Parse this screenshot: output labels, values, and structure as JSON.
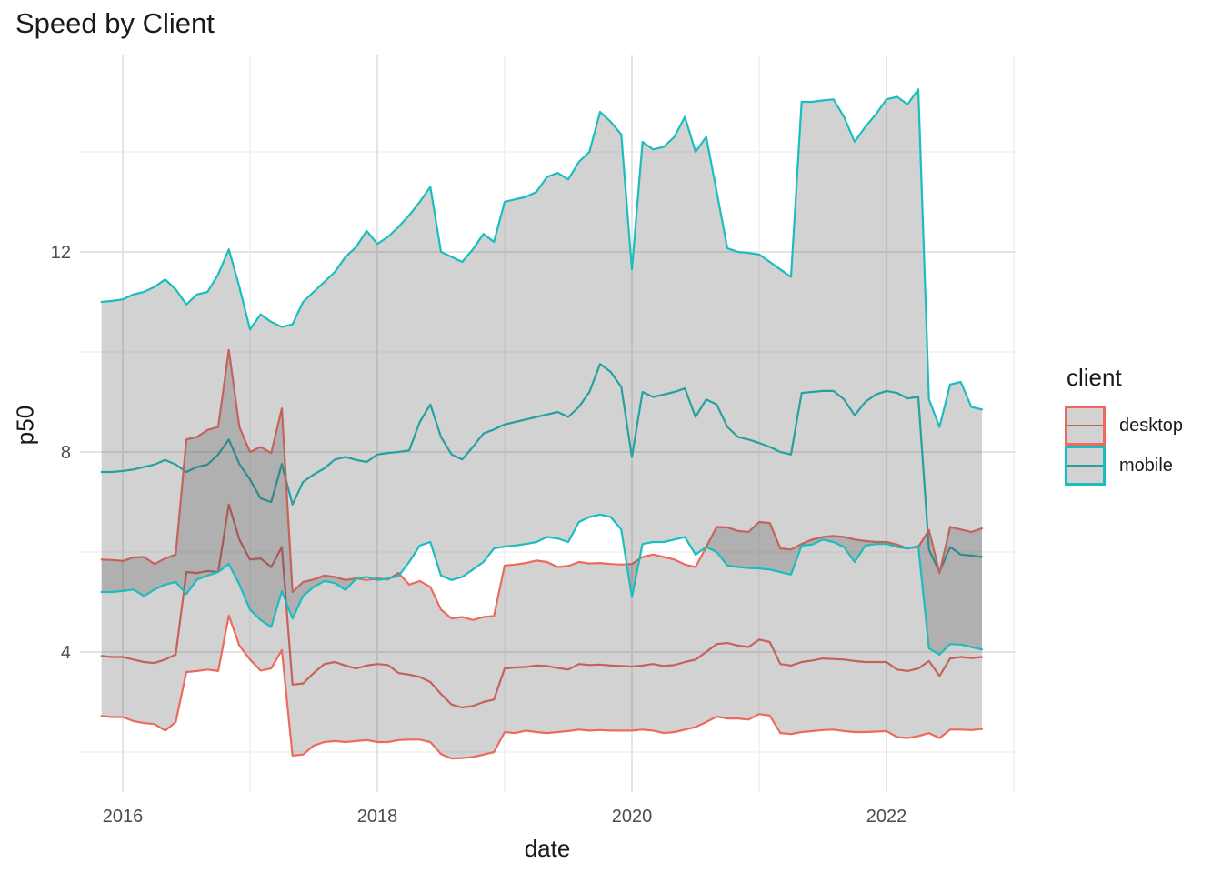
{
  "title": "Speed by Client",
  "axes": {
    "x_label": "date",
    "y_label": "p50",
    "x_tick_labels": [
      "2016",
      "2018",
      "2020",
      "2022"
    ],
    "y_tick_labels": [
      "4",
      "8",
      "12"
    ]
  },
  "legend": {
    "title": "client",
    "items": [
      {
        "label": "desktop",
        "color": "#EE6A5F"
      },
      {
        "label": "mobile",
        "color": "#1BBDBE"
      }
    ]
  },
  "colors": {
    "desktop": "#EE6A5F",
    "mobile": "#1BBDBE",
    "ribbon_fill": "rgba(77,77,77,0.25)",
    "grid_major": "#E4E4E4",
    "grid_minor": "#EDEDED",
    "tick_text": "#4D4D4D",
    "text": "#1A1A1A",
    "background": "#FFFFFF"
  },
  "chart_data": {
    "type": "area",
    "title": "Speed by Client",
    "xlabel": "date",
    "ylabel": "p50",
    "legend_title": "client",
    "legend_position": "right",
    "grid": true,
    "x_start_year": 2015.8333,
    "x_step_years": 0.08333,
    "n_points": 84,
    "xlim": [
      2015.66,
      2023.01
    ],
    "ylim": [
      1.2,
      15.93
    ],
    "x_ticks_major": [
      2016,
      2018,
      2020,
      2022
    ],
    "x_ticks_minor": [
      2017,
      2019,
      2021,
      2023
    ],
    "y_ticks_major": [
      4,
      8,
      12
    ],
    "y_ticks_minor": [
      2,
      6,
      10,
      14
    ],
    "series": [
      {
        "name": "desktop",
        "color": "#EE6A5F",
        "upper": [
          5.85,
          5.84,
          5.82,
          5.89,
          5.9,
          5.76,
          5.87,
          5.95,
          8.25,
          8.3,
          8.44,
          8.5,
          10.04,
          8.5,
          8.0,
          8.1,
          7.98,
          8.87,
          5.2,
          5.4,
          5.45,
          5.53,
          5.5,
          5.44,
          5.47,
          5.44,
          5.47,
          5.45,
          5.58,
          5.35,
          5.42,
          5.3,
          4.85,
          4.67,
          4.7,
          4.64,
          4.7,
          4.72,
          5.73,
          5.75,
          5.78,
          5.83,
          5.8,
          5.7,
          5.72,
          5.8,
          5.77,
          5.78,
          5.76,
          5.75,
          5.76,
          5.9,
          5.95,
          5.9,
          5.85,
          5.75,
          5.7,
          6.1,
          6.5,
          6.49,
          6.42,
          6.4,
          6.6,
          6.58,
          6.07,
          6.05,
          6.16,
          6.25,
          6.3,
          6.32,
          6.3,
          6.25,
          6.22,
          6.2,
          6.2,
          6.15,
          6.07,
          6.1,
          6.44,
          5.58,
          6.5,
          6.45,
          6.4,
          6.47
        ],
        "mid": [
          3.92,
          3.9,
          3.9,
          3.85,
          3.8,
          3.78,
          3.85,
          3.95,
          5.6,
          5.58,
          5.62,
          5.6,
          6.95,
          6.25,
          5.85,
          5.87,
          5.7,
          6.1,
          3.35,
          3.37,
          3.58,
          3.76,
          3.8,
          3.73,
          3.67,
          3.73,
          3.76,
          3.74,
          3.58,
          3.55,
          3.5,
          3.4,
          3.16,
          2.95,
          2.89,
          2.92,
          3.0,
          3.05,
          3.67,
          3.69,
          3.7,
          3.73,
          3.72,
          3.68,
          3.65,
          3.76,
          3.74,
          3.75,
          3.73,
          3.72,
          3.71,
          3.73,
          3.76,
          3.72,
          3.74,
          3.8,
          3.85,
          4.0,
          4.16,
          4.18,
          4.13,
          4.1,
          4.25,
          4.2,
          3.76,
          3.73,
          3.8,
          3.83,
          3.87,
          3.86,
          3.85,
          3.82,
          3.8,
          3.8,
          3.8,
          3.65,
          3.62,
          3.67,
          3.82,
          3.52,
          3.87,
          3.9,
          3.88,
          3.9
        ],
        "lower": [
          2.72,
          2.7,
          2.7,
          2.62,
          2.58,
          2.56,
          2.43,
          2.6,
          3.6,
          3.62,
          3.65,
          3.62,
          4.73,
          4.13,
          3.85,
          3.63,
          3.67,
          4.04,
          1.93,
          1.95,
          2.13,
          2.2,
          2.22,
          2.2,
          2.22,
          2.24,
          2.2,
          2.2,
          2.24,
          2.25,
          2.25,
          2.2,
          1.96,
          1.87,
          1.88,
          1.9,
          1.95,
          2.0,
          2.4,
          2.38,
          2.43,
          2.4,
          2.38,
          2.4,
          2.42,
          2.45,
          2.43,
          2.44,
          2.43,
          2.43,
          2.43,
          2.45,
          2.43,
          2.38,
          2.4,
          2.45,
          2.5,
          2.6,
          2.71,
          2.67,
          2.67,
          2.65,
          2.76,
          2.73,
          2.38,
          2.36,
          2.4,
          2.42,
          2.44,
          2.45,
          2.42,
          2.4,
          2.4,
          2.41,
          2.42,
          2.3,
          2.28,
          2.32,
          2.38,
          2.28,
          2.45,
          2.45,
          2.44,
          2.46
        ]
      },
      {
        "name": "mobile",
        "color": "#1BBDBE",
        "upper": [
          11.0,
          11.02,
          11.05,
          11.15,
          11.2,
          11.3,
          11.45,
          11.25,
          10.95,
          11.15,
          11.2,
          11.55,
          12.05,
          11.3,
          10.45,
          10.75,
          10.6,
          10.5,
          10.55,
          11.0,
          11.2,
          11.4,
          11.6,
          11.9,
          12.1,
          12.42,
          12.16,
          12.3,
          12.5,
          12.73,
          13.0,
          13.3,
          12.0,
          11.9,
          11.8,
          12.05,
          12.36,
          12.2,
          13.0,
          13.05,
          13.1,
          13.2,
          13.5,
          13.58,
          13.45,
          13.8,
          14.0,
          14.8,
          14.6,
          14.35,
          11.65,
          14.2,
          14.05,
          14.1,
          14.3,
          14.7,
          14.0,
          14.3,
          13.2,
          12.07,
          12.0,
          11.98,
          11.95,
          11.8,
          11.65,
          11.5,
          15.0,
          15.0,
          15.03,
          15.05,
          14.7,
          14.2,
          14.5,
          14.75,
          15.05,
          15.1,
          14.95,
          15.25,
          9.05,
          8.5,
          9.35,
          9.4,
          8.9,
          8.85
        ],
        "mid": [
          7.6,
          7.6,
          7.62,
          7.65,
          7.7,
          7.75,
          7.84,
          7.75,
          7.6,
          7.7,
          7.75,
          7.95,
          8.25,
          7.76,
          7.45,
          7.07,
          7.0,
          7.76,
          6.95,
          7.4,
          7.55,
          7.67,
          7.85,
          7.9,
          7.84,
          7.8,
          7.95,
          7.98,
          8.0,
          8.03,
          8.6,
          8.95,
          8.3,
          7.95,
          7.85,
          8.1,
          8.37,
          8.45,
          8.55,
          8.6,
          8.65,
          8.7,
          8.75,
          8.8,
          8.7,
          8.9,
          9.2,
          9.76,
          9.6,
          9.3,
          7.9,
          9.2,
          9.1,
          9.15,
          9.2,
          9.27,
          8.7,
          9.05,
          8.95,
          8.5,
          8.3,
          8.25,
          8.18,
          8.1,
          8.0,
          7.95,
          9.18,
          9.2,
          9.22,
          9.22,
          9.05,
          8.73,
          9.0,
          9.15,
          9.22,
          9.18,
          9.07,
          9.1,
          6.05,
          5.6,
          6.1,
          5.95,
          5.93,
          5.9
        ],
        "lower": [
          5.2,
          5.2,
          5.22,
          5.25,
          5.12,
          5.25,
          5.35,
          5.4,
          5.16,
          5.45,
          5.53,
          5.6,
          5.76,
          5.35,
          4.85,
          4.64,
          4.5,
          5.22,
          4.67,
          5.12,
          5.3,
          5.42,
          5.38,
          5.24,
          5.47,
          5.5,
          5.44,
          5.47,
          5.52,
          5.8,
          6.13,
          6.2,
          5.53,
          5.44,
          5.5,
          5.65,
          5.8,
          6.07,
          6.11,
          6.13,
          6.16,
          6.2,
          6.3,
          6.27,
          6.2,
          6.6,
          6.7,
          6.75,
          6.7,
          6.45,
          5.1,
          6.16,
          6.2,
          6.2,
          6.25,
          6.3,
          5.95,
          6.1,
          6.0,
          5.73,
          5.7,
          5.68,
          5.67,
          5.65,
          5.6,
          5.55,
          6.13,
          6.15,
          6.25,
          6.2,
          6.1,
          5.8,
          6.13,
          6.16,
          6.16,
          6.1,
          6.07,
          6.12,
          4.07,
          3.95,
          4.16,
          4.15,
          4.1,
          4.05
        ]
      }
    ]
  }
}
